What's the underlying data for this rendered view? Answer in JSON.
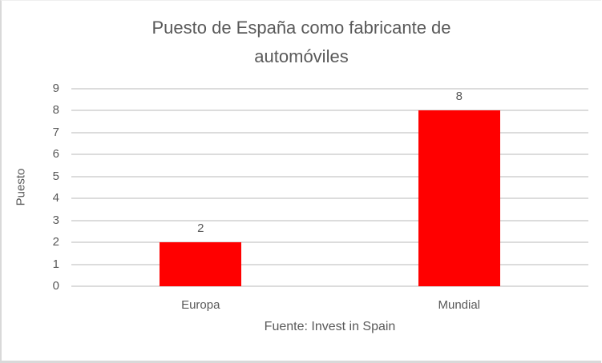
{
  "chart_data": {
    "type": "bar",
    "title": "Puesto de España como fabricante de automóviles",
    "title_lines": [
      "Puesto de España como fabricante de",
      "automóviles"
    ],
    "categories": [
      "Europa",
      "Mundial"
    ],
    "values": [
      2,
      8
    ],
    "data_labels": [
      "2",
      "8"
    ],
    "xlabel": "",
    "ylabel": "Puesto",
    "ylim": [
      0,
      9
    ],
    "yticks": [
      0,
      1,
      2,
      3,
      4,
      5,
      6,
      7,
      8,
      9
    ],
    "grid": true,
    "legend": "none",
    "source_note": "Fuente: Invest in Spain",
    "colors": {
      "bar": "#FF0000",
      "text": "#595959",
      "gridline": "#DCDCDC",
      "border": "#D9D9D9",
      "background": "#FFFFFF"
    }
  }
}
